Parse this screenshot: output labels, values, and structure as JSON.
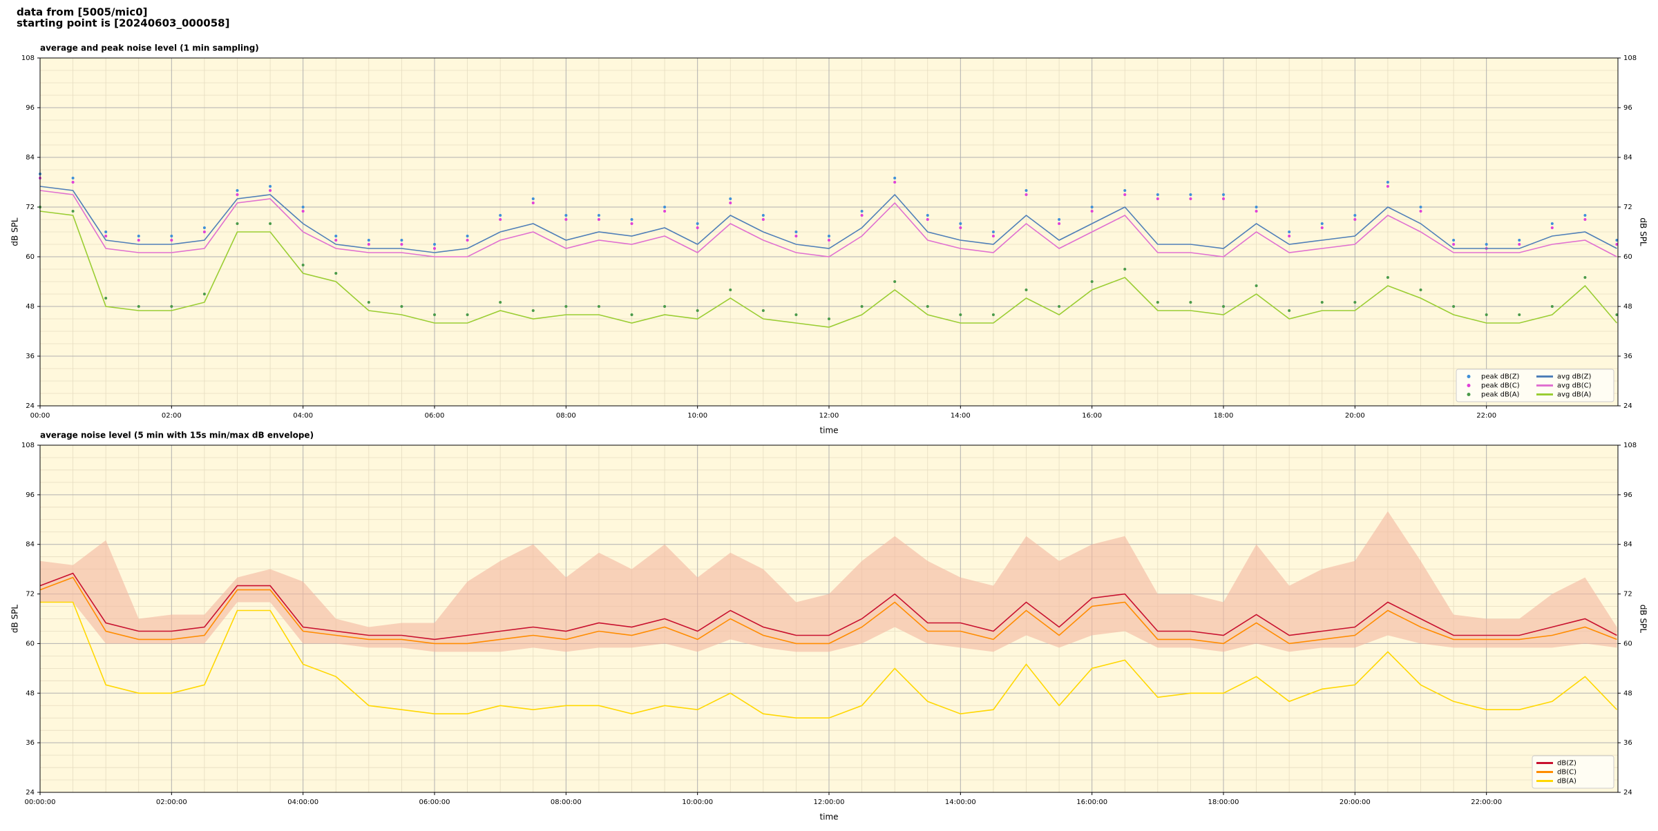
{
  "header": {
    "line1": "data from [5005/mic0]",
    "line2": "starting point is [20240603_000058]"
  },
  "chart_data": [
    {
      "type": "line",
      "title": "average and peak noise level (1 min sampling)",
      "x_label": "time",
      "y_label": "dB SPL",
      "x": [
        0,
        30,
        60,
        90,
        120,
        150,
        180,
        210,
        240,
        270,
        300,
        330,
        360,
        390,
        420,
        450,
        480,
        510,
        540,
        570,
        600,
        630,
        660,
        690,
        720,
        750,
        780,
        810,
        840,
        870,
        900,
        930,
        960,
        990,
        1020,
        1050,
        1080,
        1110,
        1140,
        1170,
        1200,
        1230,
        1260,
        1290,
        1320,
        1350,
        1380,
        1410,
        1439
      ],
      "xlim": [
        0,
        1440
      ],
      "xticks": [
        {
          "value": 0,
          "label": "00:00"
        },
        {
          "value": 120,
          "label": "02:00"
        },
        {
          "value": 240,
          "label": "04:00"
        },
        {
          "value": 360,
          "label": "06:00"
        },
        {
          "value": 480,
          "label": "08:00"
        },
        {
          "value": 600,
          "label": "10:00"
        },
        {
          "value": 720,
          "label": "12:00"
        },
        {
          "value": 840,
          "label": "14:00"
        },
        {
          "value": 960,
          "label": "16:00"
        },
        {
          "value": 1080,
          "label": "18:00"
        },
        {
          "value": 1200,
          "label": "20:00"
        },
        {
          "value": 1320,
          "label": "22:00"
        }
      ],
      "ylim": [
        24,
        108
      ],
      "yticks": [
        24,
        36,
        48,
        60,
        72,
        84,
        96,
        108
      ],
      "grid": true,
      "minor_grid": true,
      "legend": "lower right",
      "series": [
        {
          "name": "peak dB(Z)",
          "kind": "scatter",
          "color": "#3f8fd8",
          "values": [
            80,
            79,
            66,
            65,
            65,
            67,
            76,
            77,
            72,
            65,
            64,
            64,
            63,
            65,
            70,
            74,
            70,
            70,
            69,
            72,
            68,
            74,
            70,
            66,
            65,
            71,
            79,
            70,
            68,
            66,
            76,
            69,
            72,
            76,
            75,
            75,
            75,
            72,
            66,
            68,
            70,
            78,
            72,
            64,
            63,
            64,
            68,
            70,
            64
          ]
        },
        {
          "name": "peak dB(C)",
          "kind": "scatter",
          "color": "#e040d8",
          "values": [
            79,
            78,
            65,
            64,
            64,
            66,
            75,
            76,
            71,
            64,
            63,
            63,
            62,
            64,
            69,
            73,
            69,
            69,
            68,
            71,
            67,
            73,
            69,
            65,
            64,
            70,
            78,
            69,
            67,
            65,
            75,
            68,
            71,
            75,
            74,
            74,
            74,
            71,
            65,
            67,
            69,
            77,
            71,
            63,
            62,
            63,
            67,
            69,
            63
          ]
        },
        {
          "name": "peak dB(A)",
          "kind": "scatter",
          "color": "#4a9a4a",
          "values": [
            72,
            71,
            50,
            48,
            48,
            51,
            68,
            68,
            58,
            56,
            49,
            48,
            46,
            46,
            49,
            47,
            48,
            48,
            46,
            48,
            47,
            52,
            47,
            46,
            45,
            48,
            54,
            48,
            46,
            46,
            52,
            48,
            54,
            57,
            49,
            49,
            48,
            53,
            47,
            49,
            49,
            55,
            52,
            48,
            46,
            46,
            48,
            55,
            46
          ]
        },
        {
          "name": "avg dB(Z)",
          "kind": "line",
          "color": "#4f7fb8",
          "values": [
            77,
            76,
            64,
            63,
            63,
            64,
            74,
            75,
            68,
            63,
            62,
            62,
            61,
            62,
            66,
            68,
            64,
            66,
            65,
            67,
            63,
            70,
            66,
            63,
            62,
            67,
            75,
            66,
            64,
            63,
            70,
            64,
            68,
            72,
            63,
            63,
            62,
            68,
            63,
            64,
            65,
            72,
            68,
            62,
            62,
            62,
            65,
            66,
            62
          ]
        },
        {
          "name": "avg dB(C)",
          "kind": "line",
          "color": "#e070d0",
          "values": [
            76,
            75,
            62,
            61,
            61,
            62,
            73,
            74,
            66,
            62,
            61,
            61,
            60,
            60,
            64,
            66,
            62,
            64,
            63,
            65,
            61,
            68,
            64,
            61,
            60,
            65,
            73,
            64,
            62,
            61,
            68,
            62,
            66,
            70,
            61,
            61,
            60,
            66,
            61,
            62,
            63,
            70,
            66,
            61,
            61,
            61,
            63,
            64,
            60
          ]
        },
        {
          "name": "avg dB(A)",
          "kind": "line",
          "color": "#9acd32",
          "values": [
            71,
            70,
            48,
            47,
            47,
            49,
            66,
            66,
            56,
            54,
            47,
            46,
            44,
            44,
            47,
            45,
            46,
            46,
            44,
            46,
            45,
            50,
            45,
            44,
            43,
            46,
            52,
            46,
            44,
            44,
            50,
            46,
            52,
            55,
            47,
            47,
            46,
            51,
            45,
            47,
            47,
            53,
            50,
            46,
            44,
            44,
            46,
            53,
            44
          ]
        }
      ]
    },
    {
      "type": "line",
      "title": "average noise level (5 min with 15s min/max dB envelope)",
      "x_label": "time",
      "y_label": "dB SPL",
      "x": [
        0,
        30,
        60,
        90,
        120,
        150,
        180,
        210,
        240,
        270,
        300,
        330,
        360,
        390,
        420,
        450,
        480,
        510,
        540,
        570,
        600,
        630,
        660,
        690,
        720,
        750,
        780,
        810,
        840,
        870,
        900,
        930,
        960,
        990,
        1020,
        1050,
        1080,
        1110,
        1140,
        1170,
        1200,
        1230,
        1260,
        1290,
        1320,
        1350,
        1380,
        1410,
        1439
      ],
      "xlim": [
        0,
        1440
      ],
      "xticks": [
        {
          "value": 0,
          "label": "00:00:00"
        },
        {
          "value": 120,
          "label": "02:00:00"
        },
        {
          "value": 240,
          "label": "04:00:00"
        },
        {
          "value": 360,
          "label": "06:00:00"
        },
        {
          "value": 480,
          "label": "08:00:00"
        },
        {
          "value": 600,
          "label": "10:00:00"
        },
        {
          "value": 720,
          "label": "12:00:00"
        },
        {
          "value": 840,
          "label": "14:00:00"
        },
        {
          "value": 960,
          "label": "16:00:00"
        },
        {
          "value": 1080,
          "label": "18:00:00"
        },
        {
          "value": 1200,
          "label": "20:00:00"
        },
        {
          "value": 1320,
          "label": "22:00:00"
        }
      ],
      "ylim": [
        24,
        108
      ],
      "yticks": [
        24,
        36,
        48,
        60,
        72,
        84,
        96,
        108
      ],
      "grid": true,
      "minor_grid": true,
      "legend": "lower right",
      "envelope": {
        "color": "#f4b8a0",
        "max": [
          80,
          79,
          85,
          66,
          67,
          67,
          76,
          78,
          75,
          66,
          64,
          65,
          65,
          75,
          80,
          84,
          76,
          82,
          78,
          84,
          76,
          82,
          78,
          70,
          72,
          80,
          86,
          80,
          76,
          74,
          86,
          80,
          84,
          86,
          72,
          72,
          70,
          84,
          74,
          78,
          80,
          92,
          80,
          67,
          66,
          66,
          72,
          76,
          64
        ],
        "min": [
          70,
          70,
          60,
          60,
          60,
          60,
          70,
          70,
          60,
          60,
          59,
          59,
          58,
          58,
          58,
          59,
          58,
          59,
          59,
          60,
          58,
          61,
          59,
          58,
          58,
          60,
          64,
          60,
          59,
          58,
          62,
          59,
          62,
          63,
          59,
          59,
          58,
          60,
          58,
          59,
          59,
          62,
          60,
          59,
          59,
          59,
          59,
          60,
          59
        ]
      },
      "series": [
        {
          "name": "dB(Z)",
          "kind": "line",
          "color": "#c8102e",
          "values": [
            74,
            77,
            65,
            63,
            63,
            64,
            74,
            74,
            64,
            63,
            62,
            62,
            61,
            62,
            63,
            64,
            63,
            65,
            64,
            66,
            63,
            68,
            64,
            62,
            62,
            66,
            72,
            65,
            65,
            63,
            70,
            64,
            71,
            72,
            63,
            63,
            62,
            67,
            62,
            63,
            64,
            70,
            66,
            62,
            62,
            62,
            64,
            66,
            62
          ]
        },
        {
          "name": "dB(C)",
          "kind": "line",
          "color": "#ff8c00",
          "values": [
            73,
            76,
            63,
            61,
            61,
            62,
            73,
            73,
            63,
            62,
            61,
            61,
            60,
            60,
            61,
            62,
            61,
            63,
            62,
            64,
            61,
            66,
            62,
            60,
            60,
            64,
            70,
            63,
            63,
            61,
            68,
            62,
            69,
            70,
            61,
            61,
            60,
            65,
            60,
            61,
            62,
            68,
            64,
            61,
            61,
            61,
            62,
            64,
            61
          ]
        },
        {
          "name": "dB(A)",
          "kind": "line",
          "color": "#ffd700",
          "values": [
            70,
            70,
            50,
            48,
            48,
            50,
            68,
            68,
            55,
            52,
            45,
            44,
            43,
            43,
            45,
            44,
            45,
            45,
            43,
            45,
            44,
            48,
            43,
            42,
            42,
            45,
            54,
            46,
            43,
            44,
            55,
            45,
            54,
            56,
            47,
            48,
            48,
            52,
            46,
            49,
            50,
            58,
            50,
            46,
            44,
            44,
            46,
            52,
            44
          ]
        }
      ]
    }
  ]
}
